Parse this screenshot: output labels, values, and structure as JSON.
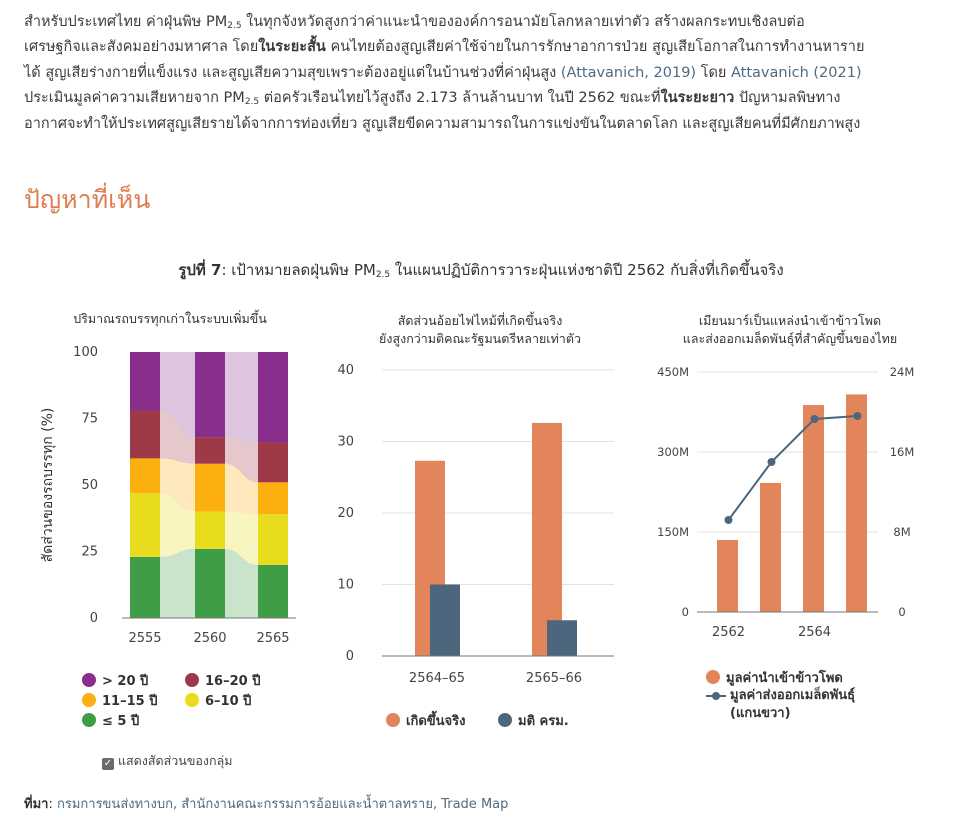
{
  "intro": {
    "line1": "สำหรับประเทศไทย ค่าฝุ่นพิษ PM",
    "line1_sub": "2.5",
    "line1_rest": " ในทุกจังหวัดสูงกว่าค่าแนะนำขององค์การอนามัยโลกหลายเท่าตัว สร้างผลกระทบเชิงลบต่อ",
    "line2_a": "เศรษฐกิจและสังคมอย่างมหาศาล โดย",
    "line2_bold": "ในระยะสั้น",
    "line2_b": " คนไทยต้องสูญเสียค่าใช้จ่ายในการรักษาอาการป่วย สูญเสียโอกาสในการทำงานหาราย",
    "line3_a": "ได้ สูญเสียร่างกายที่แข็งแรง และสูญเสียความสุขเพราะต้องอยู่แต่ในบ้านช่วงที่ค่าฝุ่นสูง ",
    "ref1": "(Attavanich, 2019)",
    "line3_b": " โดย ",
    "ref2": "Attavanich (2021)",
    "line4_a": "ประเมินมูลค่าความเสียหายจาก PM",
    "line4_sub": "2.5",
    "line4_b": " ต่อครัวเรือนไทยไว้สูงถึง 2.173 ล้านล้านบาท ในปี 2562 ขณะที่",
    "line4_bold": "ในระยะยาว",
    "line4_c": " ปัญหามลพิษทาง",
    "line5": "อากาศจะทำให้ประเทศสูญเสียรายได้จากการท่องเที่ยว สูญเสียขีดความสามารถในการแข่งขันในตลาดโลก และสูญเสียคนที่มีศักยภาพสูง"
  },
  "heading": "ปัญหาที่เห็น",
  "figure": {
    "label": "รูปที่ 7",
    "title_a": ": เป้าหมายลดฝุ่นพิษ PM",
    "title_sub": "2.5",
    "title_b": " ในแผนปฏิบัติการวาระฝุ่นแห่งชาติปี 2562 กับสิ่งที่เกิดขึ้นจริง"
  },
  "toggle_label": "แสดงสัดส่วนของกลุ่ม",
  "source": {
    "label": "ที่มา",
    "sep": ": ",
    "text": "กรมการขนส่งทางบก, สำนักงานคณะกรรมการอ้อยและน้ำตาลทราย, Trade Map"
  },
  "colors": {
    "purple": "#892e8c",
    "maroon": "#9e3a48",
    "orange": "#fbb010",
    "yellow": "#e9dc1c",
    "green": "#3f9d48",
    "bar_orange": "#e2855a",
    "bar_slate": "#4b667d",
    "line": "#4b667d"
  },
  "chart_data": [
    {
      "type": "bar",
      "stacked": true,
      "title": "ปริมาณรถบรรทุกเก่าในระบบเพิ่มขึ้น",
      "ylabel": "สัดส่วนของรถบรรทุก (%)",
      "ylim": [
        0,
        100
      ],
      "yticks": [
        "0",
        "25",
        "50",
        "75",
        "100"
      ],
      "categories": [
        "2555",
        "2560",
        "2565"
      ],
      "series": [
        {
          "name": "≤ 5 ปี",
          "values": [
            23,
            26,
            20
          ]
        },
        {
          "name": "6–10 ปี",
          "values": [
            24,
            14,
            19
          ]
        },
        {
          "name": "11–15 ปี",
          "values": [
            13,
            18,
            12
          ]
        },
        {
          "name": "16–20 ปี",
          "values": [
            18,
            10,
            15
          ]
        },
        {
          "name": "> 20 ปี",
          "values": [
            22,
            32,
            34
          ]
        }
      ],
      "legend_order": [
        "> 20 ปี",
        "16–20 ปี",
        "11–15 ปี",
        "6–10 ปี",
        "≤ 5 ปี"
      ]
    },
    {
      "type": "bar",
      "title": "สัดส่วนอ้อยไฟไหม้ที่เกิดขึ้นจริง",
      "subtitle": "ยังสูงกว่ามติคณะรัฐมนตรีหลายเท่าตัว",
      "ylim": [
        0,
        40
      ],
      "yticks": [
        "0",
        "10",
        "20",
        "30",
        "40"
      ],
      "categories": [
        "2564–65",
        "2565–66"
      ],
      "series": [
        {
          "name": "เกิดขึ้นจริง",
          "values": [
            27.3,
            32.6
          ]
        },
        {
          "name": "มติ ครม.",
          "values": [
            10,
            5
          ]
        }
      ]
    },
    {
      "type": "bar+line",
      "title": "เมียนมาร์เป็นแหล่งนำเข้าข้าวโพด",
      "subtitle": "และส่งออกเมล็ดพันธุ์ที่สำคัญขึ้นของไทย",
      "x": [
        "2562",
        "2563",
        "2564",
        "2565"
      ],
      "xtick_labels": [
        "2562",
        "",
        "2564",
        ""
      ],
      "ylim_left": [
        0,
        450
      ],
      "ylim_right": [
        0,
        24
      ],
      "yticks_left": [
        "0",
        "150M",
        "300M",
        "450M"
      ],
      "yticks_right": [
        "0",
        "8M",
        "16M",
        "24M"
      ],
      "series": [
        {
          "name": "มูลค่านำเข้าข้าวโพด",
          "type": "bar",
          "axis": "left",
          "values": [
            135,
            242,
            388,
            408
          ]
        },
        {
          "name": "มูลค่าส่งออกเมล็ดพันธุ์ (แกนขวา)",
          "type": "line",
          "axis": "right",
          "values": [
            9.2,
            15.0,
            19.3,
            19.6
          ]
        }
      ]
    }
  ]
}
